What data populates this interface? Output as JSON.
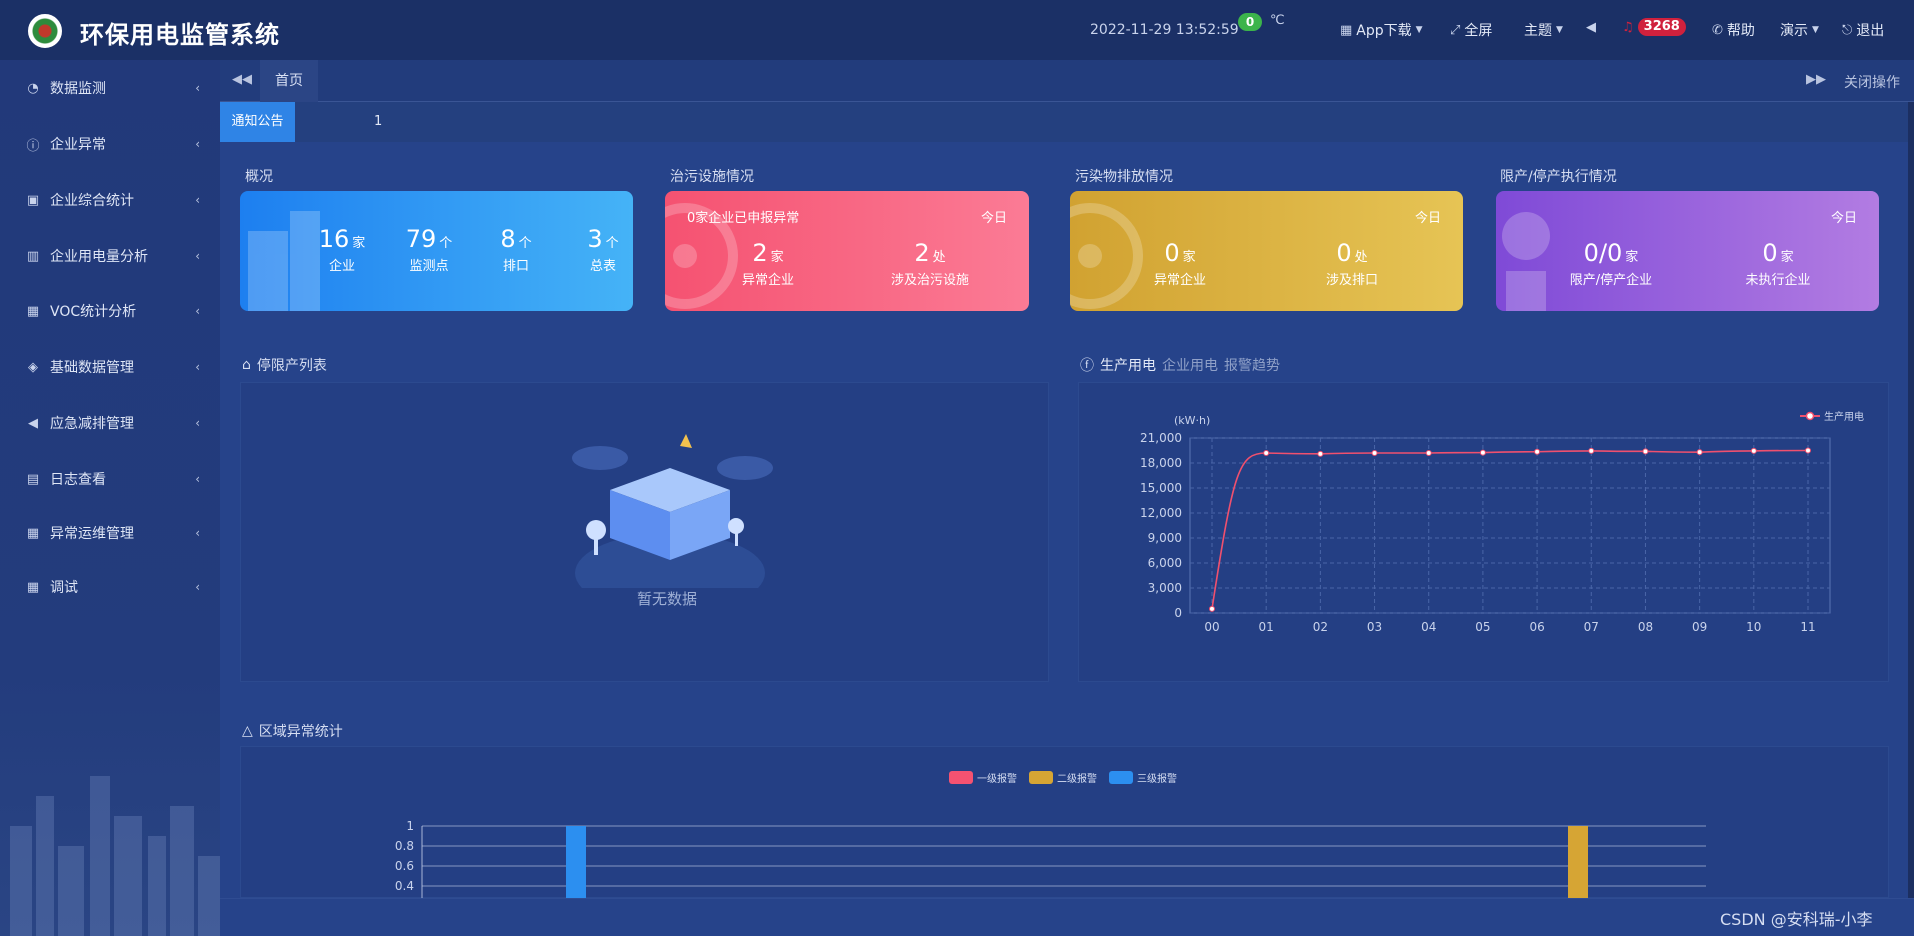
{
  "header": {
    "title": "环保用电监管系统",
    "datetime": "2022-11-29  13:52:59",
    "temp_value": "0",
    "temp_unit": "℃",
    "app_download": "App下载",
    "fullscreen": "全屏",
    "theme": "主题",
    "alarm_count": "3268",
    "help": "帮助",
    "demo": "演示",
    "logout": "退出"
  },
  "sidebar": {
    "items": [
      {
        "label": "数据监测",
        "icon": "monitor-icon"
      },
      {
        "label": "企业异常",
        "icon": "alert-circle-icon"
      },
      {
        "label": "企业综合统计",
        "icon": "stats-icon"
      },
      {
        "label": "企业用电量分析",
        "icon": "bar-chart-icon"
      },
      {
        "label": "VOC统计分析",
        "icon": "calendar-icon"
      },
      {
        "label": "基础数据管理",
        "icon": "layers-icon"
      },
      {
        "label": "应急减排管理",
        "icon": "megaphone-icon"
      },
      {
        "label": "日志查看",
        "icon": "log-icon"
      },
      {
        "label": "异常运维管理",
        "icon": "calendar-icon"
      },
      {
        "label": "调试",
        "icon": "calendar-icon"
      }
    ]
  },
  "tabs": {
    "home": "首页",
    "close_ops": "关闭操作"
  },
  "notice": {
    "label": "通知公告",
    "text": "1"
  },
  "overview": {
    "title": "概况",
    "stats": [
      {
        "value": "16",
        "unit": "家",
        "label": "企业"
      },
      {
        "value": "79",
        "unit": "个",
        "label": "监测点"
      },
      {
        "value": "8",
        "unit": "个",
        "label": "排口"
      },
      {
        "value": "3",
        "unit": "个",
        "label": "总表"
      }
    ]
  },
  "facility": {
    "title": "治污设施情况",
    "subtitle": "0家企业已申报异常",
    "today": "今日",
    "stats": [
      {
        "value": "2",
        "unit": "家",
        "label": "异常企业"
      },
      {
        "value": "2",
        "unit": "处",
        "label": "涉及治污设施"
      }
    ]
  },
  "emission": {
    "title": "污染物排放情况",
    "today": "今日",
    "stats": [
      {
        "value": "0",
        "unit": "家",
        "label": "异常企业"
      },
      {
        "value": "0",
        "unit": "处",
        "label": "涉及排口"
      }
    ]
  },
  "restriction": {
    "title": "限产/停产执行情况",
    "today": "今日",
    "stats": [
      {
        "value": "0/0",
        "unit": "家",
        "label": "限产/停产企业"
      },
      {
        "value": "0",
        "unit": "家",
        "label": "未执行企业"
      }
    ]
  },
  "stop_list": {
    "title": "停限产列表",
    "empty": "暂无数据"
  },
  "power": {
    "tab_active": "生产用电",
    "tab_2": "企业用电",
    "tab_3": "报警趋势"
  },
  "region": {
    "title": "区域异常统计",
    "legend": [
      "一级报警",
      "二级报警",
      "三级报警"
    ],
    "legend_colors": [
      "#f55271",
      "#d6a534",
      "#2c8ff0"
    ]
  },
  "watermark": "CSDN @安科瑞-小李",
  "chart_data": [
    {
      "type": "line",
      "ylabel": "(kW·h)",
      "categories": [
        "00",
        "01",
        "02",
        "03",
        "04",
        "05",
        "06",
        "07",
        "08",
        "09",
        "10",
        "11"
      ],
      "series": [
        {
          "name": "生产用电",
          "color": "#f0506e",
          "values": [
            500,
            19200,
            19100,
            19200,
            19200,
            19250,
            19350,
            19450,
            19400,
            19300,
            19450,
            19500
          ]
        }
      ],
      "yticks": [
        "21,000",
        "18,000",
        "15,000",
        "12,000",
        "9,000",
        "6,000",
        "3,000",
        "0"
      ],
      "ylim": [
        0,
        21000
      ],
      "grid": true,
      "legend": "top-right"
    },
    {
      "type": "bar",
      "yticks": [
        "1",
        "0.8",
        "0.6",
        "0.4"
      ],
      "ylim": [
        0,
        1
      ],
      "series": [
        {
          "name": "一级报警",
          "color": "#f55271",
          "values": [
            0,
            0,
            0
          ]
        },
        {
          "name": "二级报警",
          "color": "#d6a534",
          "values": [
            0,
            0,
            1
          ]
        },
        {
          "name": "三级报警",
          "color": "#2c8ff0",
          "values": [
            1,
            0,
            0
          ]
        }
      ]
    }
  ]
}
